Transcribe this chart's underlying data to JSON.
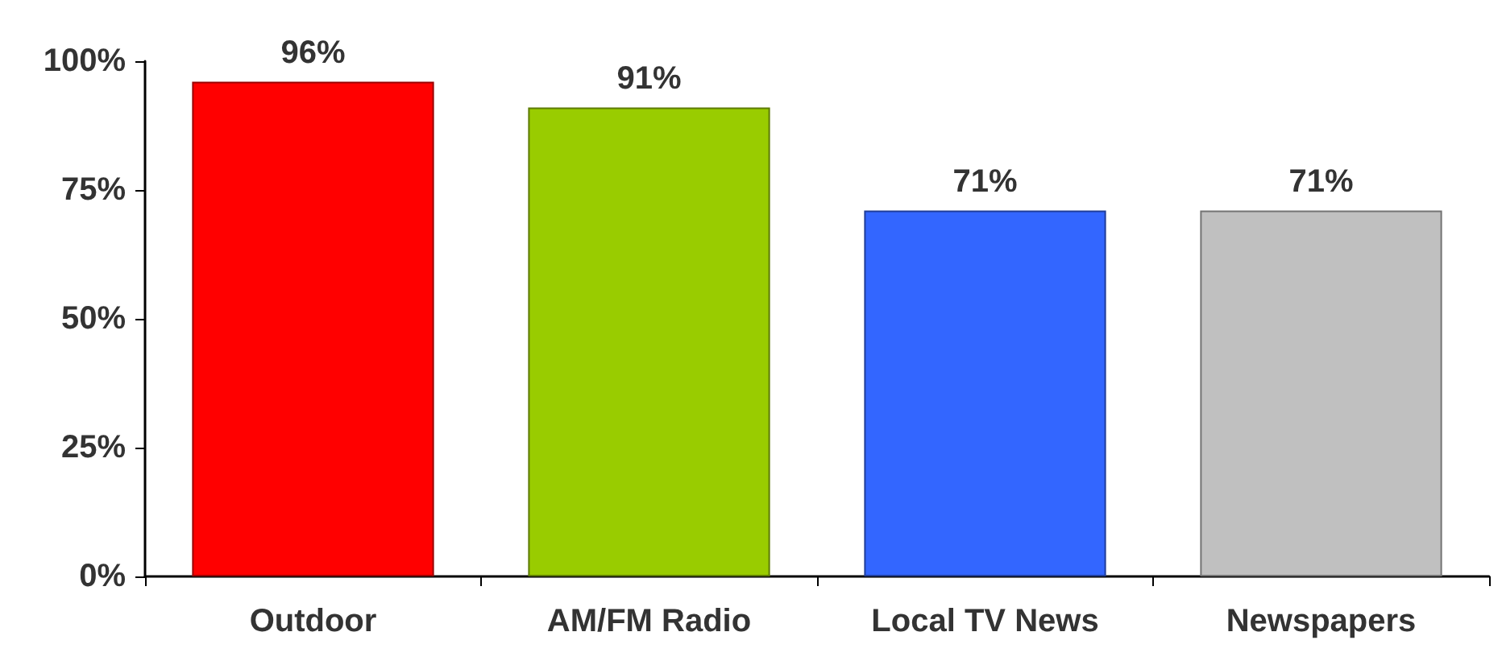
{
  "chart_data": {
    "type": "bar",
    "categories": [
      "Outdoor",
      "AM/FM Radio",
      "Local TV News",
      "Newspapers"
    ],
    "values": [
      96,
      91,
      71,
      71
    ],
    "colors": [
      "#ff0000",
      "#99cc00",
      "#3366ff",
      "#c0c0c0"
    ],
    "value_labels": [
      "96%",
      "91%",
      "71%",
      "71%"
    ],
    "ylim": [
      0,
      100
    ],
    "yticks": [
      {
        "value": 0,
        "label": "0%"
      },
      {
        "value": 25,
        "label": "25%"
      },
      {
        "value": 50,
        "label": "50%"
      },
      {
        "value": 75,
        "label": "75%"
      },
      {
        "value": 100,
        "label": "100%"
      }
    ],
    "grid": false
  }
}
